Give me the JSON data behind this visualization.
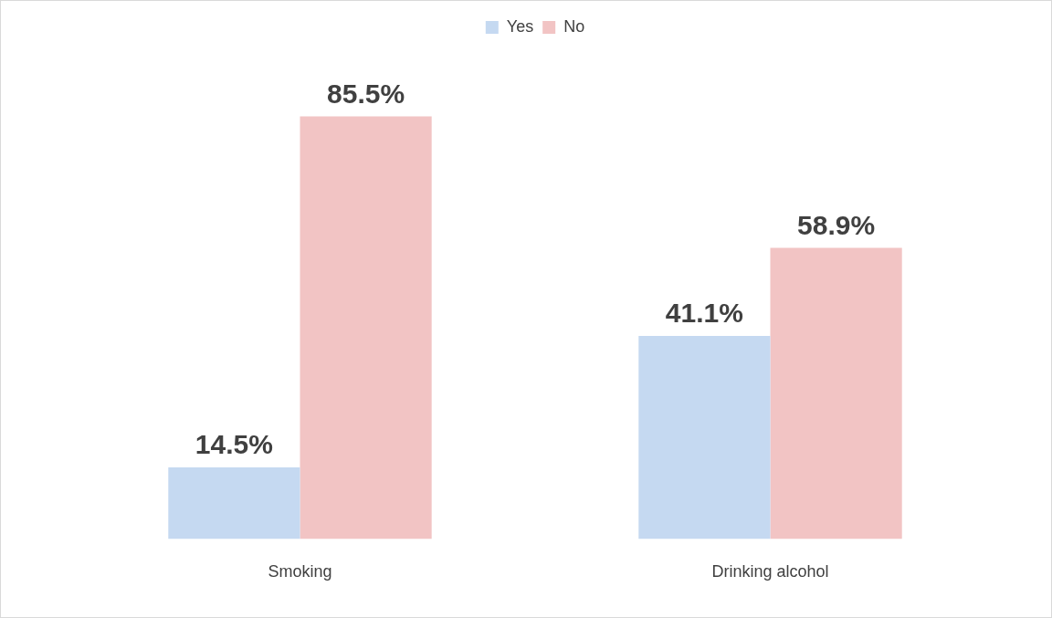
{
  "chart_data": {
    "type": "bar",
    "categories": [
      "Smoking",
      "Drinking alcohol"
    ],
    "series": [
      {
        "name": "Yes",
        "color": "#c5d9f1",
        "values": [
          14.5,
          41.1
        ],
        "value_labels": [
          "14.5%",
          "41.1%"
        ]
      },
      {
        "name": "No",
        "color": "#f2c4c4",
        "values": [
          85.5,
          58.9
        ],
        "value_labels": [
          "85.5%",
          "58.9%"
        ]
      }
    ],
    "legend": "top",
    "grid": false
  }
}
